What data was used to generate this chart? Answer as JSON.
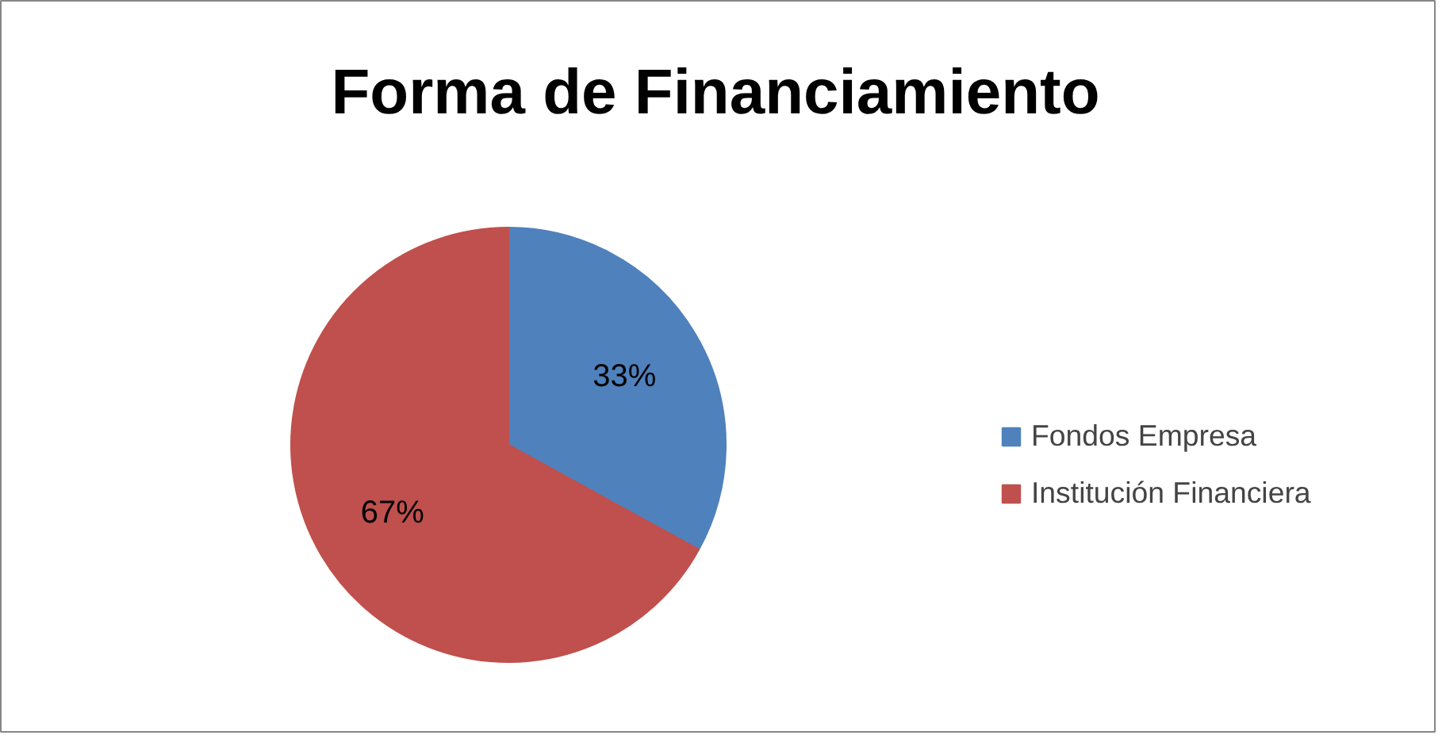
{
  "chart_data": {
    "type": "pie",
    "title": "Forma de Financiamiento",
    "categories": [
      "Fondos Empresa",
      "Institución Financiera"
    ],
    "values": [
      33,
      67
    ],
    "colors": [
      "#4f81bd",
      "#c0504d"
    ],
    "value_labels": [
      "33%",
      "67%"
    ],
    "legend": "right"
  }
}
